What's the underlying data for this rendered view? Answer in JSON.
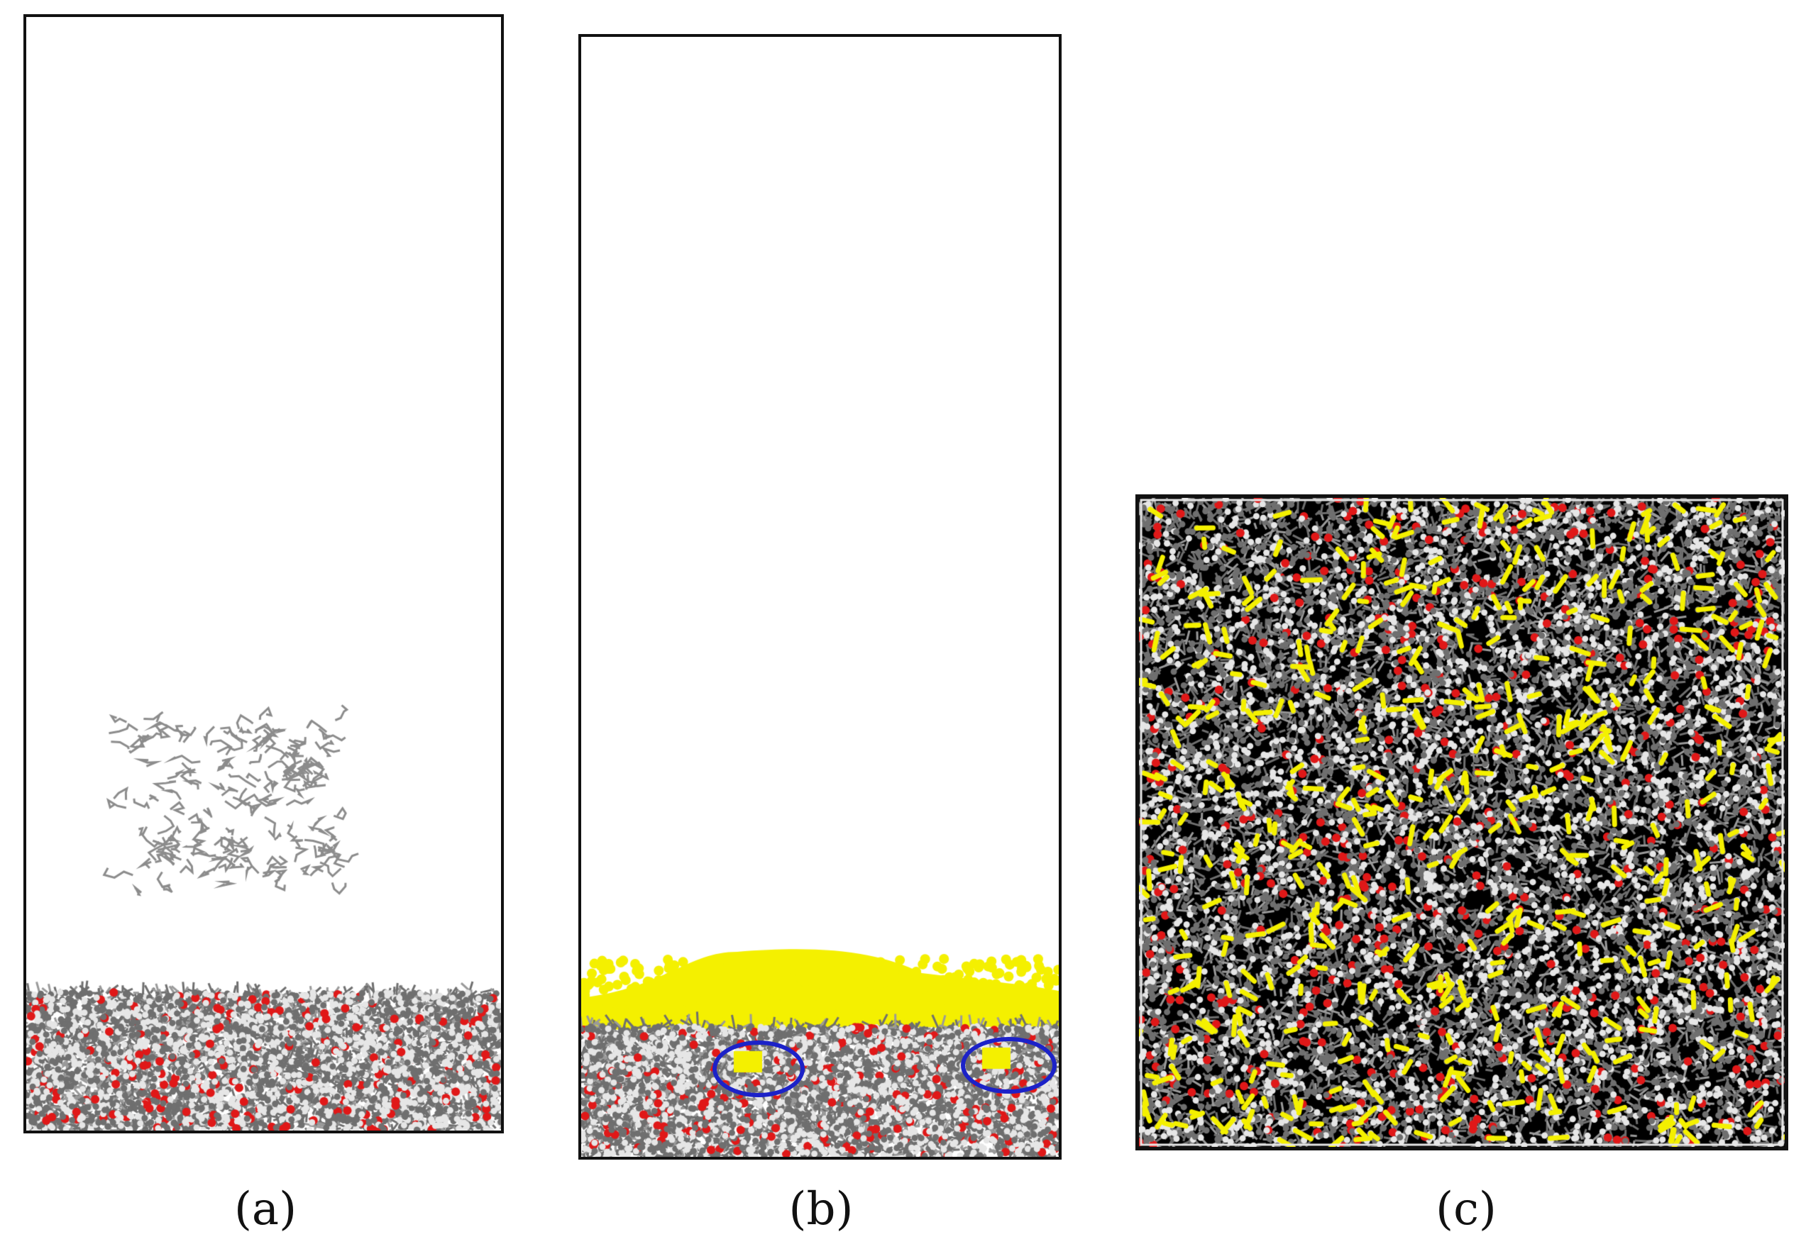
{
  "panels": [
    {
      "id": "a",
      "caption": "(a)"
    },
    {
      "id": "b",
      "caption": "(b)"
    },
    {
      "id": "c",
      "caption": "(c)"
    }
  ],
  "colors": {
    "atom_gray": "#6f6f6f",
    "atom_white": "#e6e6e6",
    "oxygen_red": "#e01818",
    "molecule_yellow": "#f4f000",
    "highlight_blue": "#1c22c8",
    "frame": "#111111"
  }
}
